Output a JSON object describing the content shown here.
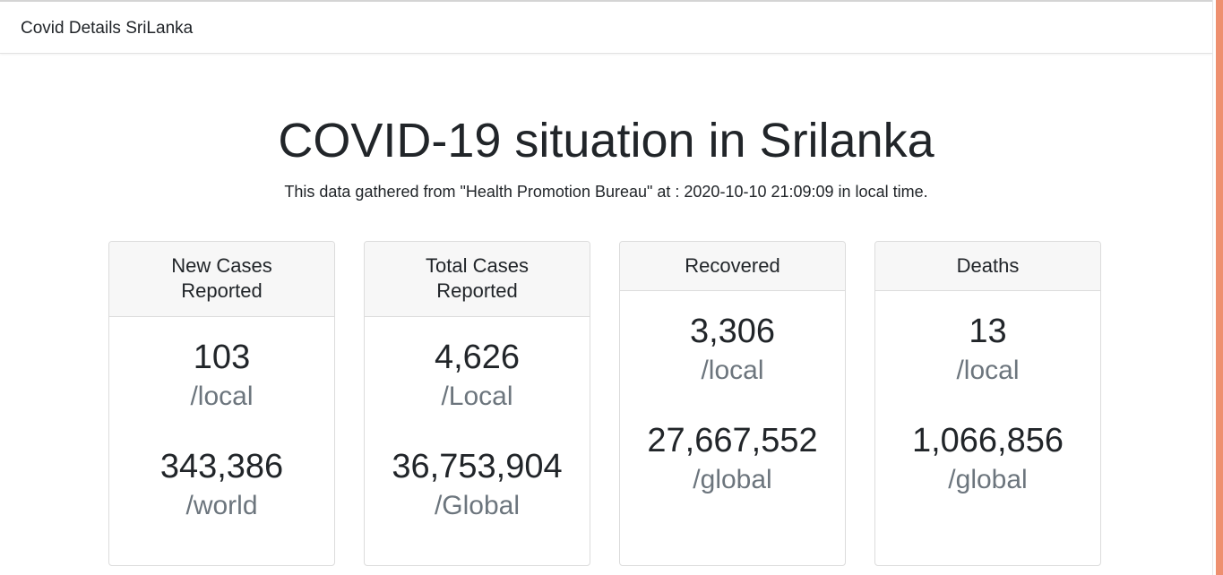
{
  "navbar": {
    "brand": "Covid Details SriLanka"
  },
  "main": {
    "title": "COVID-19 situation in Srilanka",
    "subtitle": "This data gathered from \"Health Promotion Bureau\" at : 2020-10-10 21:09:09 in local time."
  },
  "cards": [
    {
      "header_line1": "New Cases",
      "header_line2": "Reported",
      "local_value": "103",
      "local_unit": "/local",
      "global_value": "343,386",
      "global_unit": "/world"
    },
    {
      "header_line1": "Total Cases",
      "header_line2": "Reported",
      "local_value": "4,626",
      "local_unit": "/Local",
      "global_value": "36,753,904",
      "global_unit": "/Global"
    },
    {
      "header_line1": "Recovered",
      "local_value": "3,306",
      "local_unit": "/local",
      "global_value": "27,667,552",
      "global_unit": "/global"
    },
    {
      "header_line1": "Deaths",
      "local_value": "13",
      "local_unit": "/local",
      "global_value": "1,066,856",
      "global_unit": "/global"
    }
  ],
  "colors": {
    "text": "#212529",
    "muted": "#6c757d",
    "card_header_bg": "#f7f7f7",
    "scroll_thumb": "#ee8f6f"
  }
}
